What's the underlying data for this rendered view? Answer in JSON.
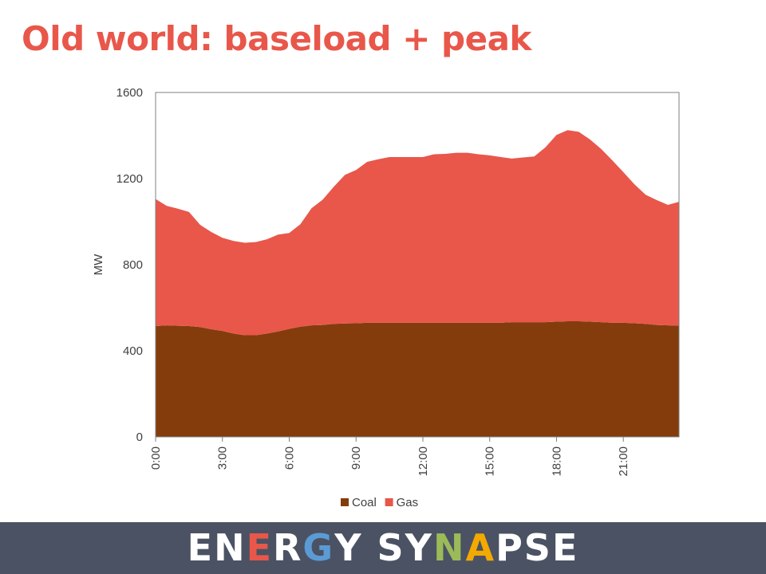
{
  "slide": {
    "title": "Old world: baseload + peak"
  },
  "chart_data": {
    "type": "area",
    "stacked": true,
    "ylabel": "MW",
    "xlabel": "",
    "ylim": [
      0,
      1600
    ],
    "yticks": [
      "0",
      "400",
      "800",
      "1200",
      "1600"
    ],
    "xtick_labels": [
      "0:00",
      "3:00",
      "6:00",
      "9:00",
      "12:00",
      "15:00",
      "18:00",
      "21:00"
    ],
    "x": [
      0,
      0.5,
      1,
      1.5,
      2,
      2.5,
      3,
      3.5,
      4,
      4.5,
      5,
      5.5,
      6,
      6.5,
      7,
      7.5,
      8,
      8.5,
      9,
      9.5,
      10,
      10.5,
      11,
      11.5,
      12,
      12.5,
      13,
      13.5,
      14,
      14.5,
      15,
      15.5,
      16,
      16.5,
      17,
      17.5,
      18,
      18.5,
      19,
      19.5,
      20,
      20.5,
      21,
      21.5,
      22,
      22.5,
      23,
      23.5
    ],
    "grid": false,
    "legend_position": "bottom",
    "series": [
      {
        "name": "Coal",
        "color": "#843c0c",
        "values": [
          515,
          518,
          516,
          515,
          510,
          500,
          492,
          480,
          472,
          472,
          480,
          490,
          502,
          512,
          518,
          520,
          525,
          527,
          528,
          530,
          530,
          530,
          530,
          530,
          530,
          530,
          530,
          530,
          530,
          530,
          530,
          530,
          533,
          533,
          533,
          533,
          535,
          537,
          537,
          535,
          533,
          530,
          530,
          528,
          525,
          520,
          518,
          517
        ]
      },
      {
        "name": "Gas",
        "color": "#e8574a",
        "values": [
          590,
          555,
          544,
          530,
          475,
          452,
          433,
          430,
          430,
          433,
          438,
          450,
          445,
          476,
          544,
          582,
          637,
          690,
          712,
          748,
          760,
          770,
          770,
          770,
          770,
          783,
          785,
          790,
          790,
          783,
          778,
          770,
          760,
          765,
          770,
          812,
          868,
          888,
          880,
          847,
          805,
          755,
          700,
          645,
          600,
          580,
          560,
          575
        ]
      }
    ]
  },
  "footer": {
    "logo_text": "ENERGY SYNAPSE",
    "logo_colors": {
      "E1": "#ffffff",
      "N1": "#ffffff",
      "E2": "#e8574a",
      "R": "#ffffff",
      "G": "#5b9bd5",
      "Y1": "#ffffff",
      "S": "#ffffff",
      "Y2": "#ffffff",
      "N2": "#9bbb59",
      "A": "#f2a900",
      "P": "#ffffff",
      "S2": "#ffffff",
      "E3": "#ffffff"
    }
  }
}
